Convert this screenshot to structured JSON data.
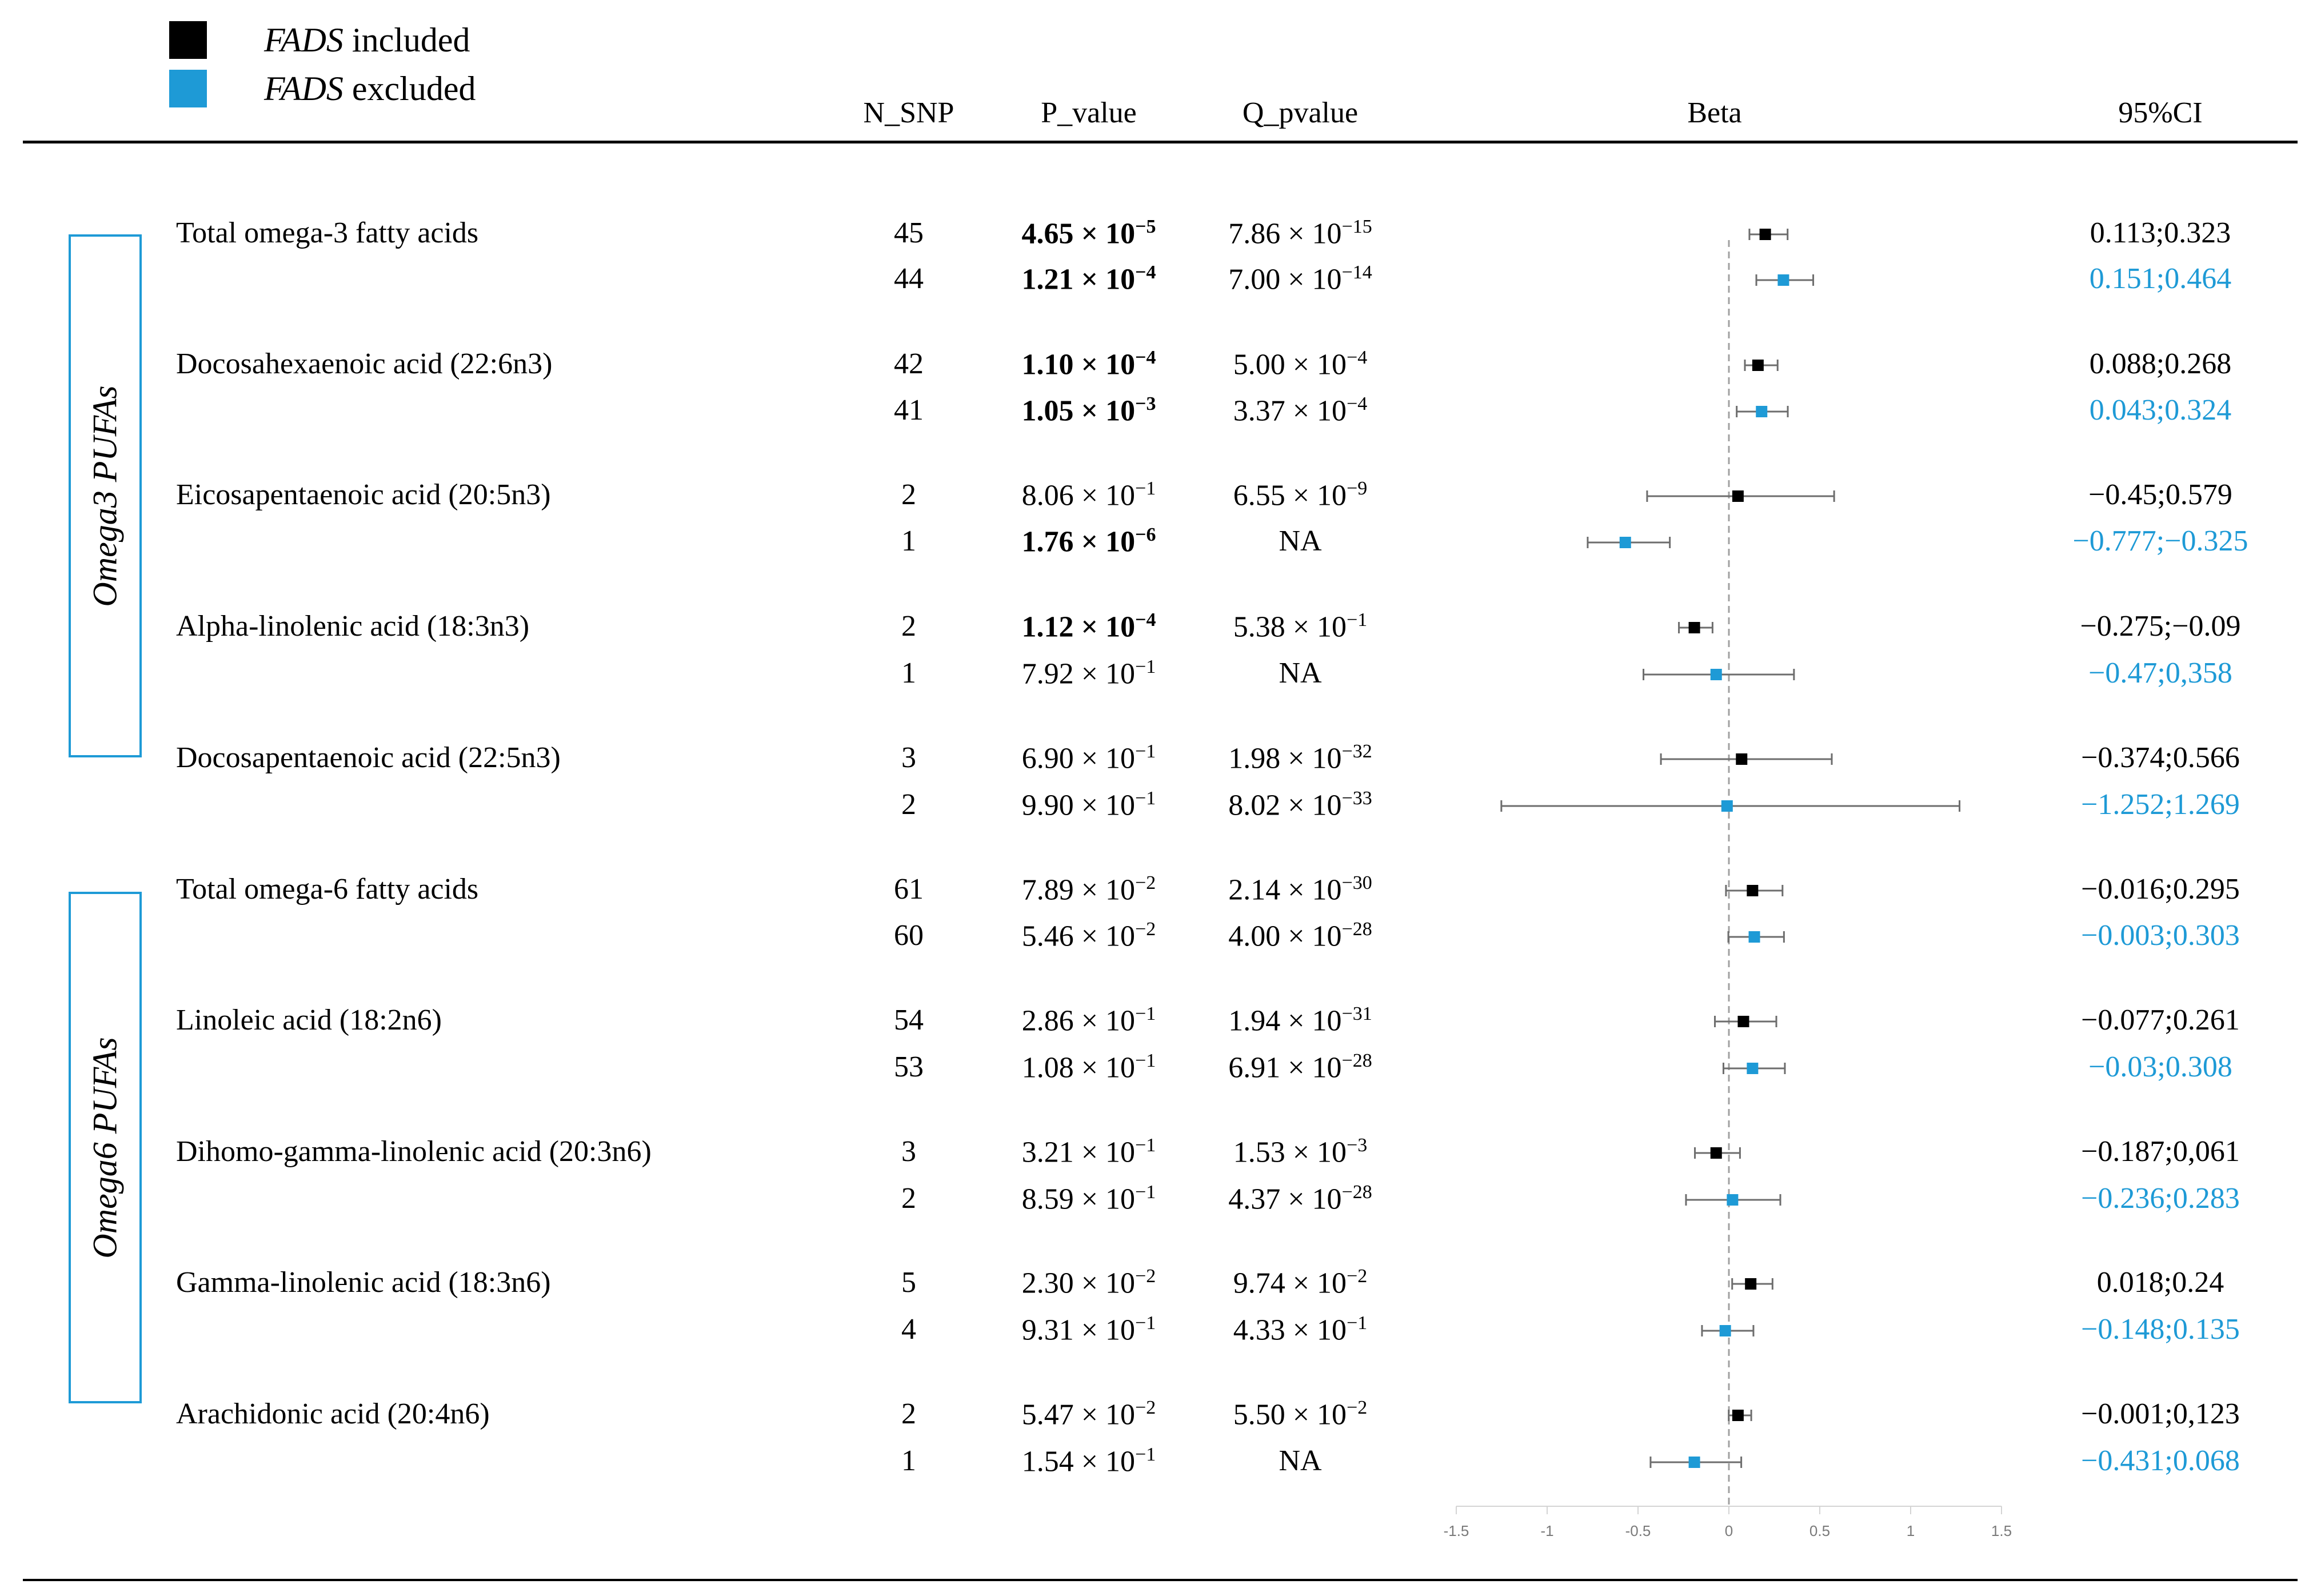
{
  "legend": [
    {
      "italic": "FADS",
      "rest": " included",
      "color": "#000000"
    },
    {
      "italic": "FADS",
      "rest": " excluded",
      "color": "#1E9AD6"
    }
  ],
  "headers": {
    "n_snp": "N_SNP",
    "p_value": "P_value",
    "q_pvalue": "Q_pvalue",
    "beta": "Beta",
    "ci": "95%CI"
  },
  "groups": [
    "Omega3 PUFAs",
    "Omega6 PUFAs"
  ],
  "colors": {
    "included": "#000000",
    "excluded": "#1E9AD6",
    "box": "#1E9AD6",
    "whisker": "#6d6d6d",
    "zero_line": "#a0a0a0"
  },
  "traits": [
    {
      "name": "Total omega-3 fatty acids",
      "rows": [
        {
          "n": "45",
          "p": {
            "m": "4.65",
            "e": "−5",
            "bold": true
          },
          "q": {
            "m": "7.86",
            "e": "−15"
          },
          "ci": "0.113;0.323"
        },
        {
          "n": "44",
          "p": {
            "m": "1.21",
            "e": "−4",
            "bold": true
          },
          "q": {
            "m": "7.00",
            "e": "−14"
          },
          "ci": "0.151;0.464"
        }
      ]
    },
    {
      "name": "Docosahexaenoic acid (22:6n3)",
      "rows": [
        {
          "n": "42",
          "p": {
            "m": "1.10",
            "e": "−4",
            "bold": true
          },
          "q": {
            "m": "5.00",
            "e": "−4"
          },
          "ci": "0.088;0.268"
        },
        {
          "n": "41",
          "p": {
            "m": "1.05",
            "e": "−3",
            "bold": true
          },
          "q": {
            "m": "3.37",
            "e": "−4"
          },
          "ci": "0.043;0.324"
        }
      ]
    },
    {
      "name": "Eicosapentaenoic acid (20:5n3)",
      "rows": [
        {
          "n": "2",
          "p": {
            "m": "8.06",
            "e": "−1",
            "bold": false
          },
          "q": {
            "m": "6.55",
            "e": "−9"
          },
          "ci": "−0.45;0.579"
        },
        {
          "n": "1",
          "p": {
            "m": "1.76",
            "e": "−6",
            "bold": true
          },
          "q": {
            "na": "NA"
          },
          "ci": "−0.777;−0.325"
        }
      ]
    },
    {
      "name": "Alpha-linolenic acid (18:3n3)",
      "rows": [
        {
          "n": "2",
          "p": {
            "m": "1.12",
            "e": "−4",
            "bold": true
          },
          "q": {
            "m": "5.38",
            "e": "−1"
          },
          "ci": "−0.275;−0.09"
        },
        {
          "n": "1",
          "p": {
            "m": "7.92",
            "e": "−1",
            "bold": false
          },
          "q": {
            "na": "NA"
          },
          "ci": "−0.47;0,358"
        }
      ]
    },
    {
      "name": "Docosapentaenoic acid (22:5n3)",
      "rows": [
        {
          "n": "3",
          "p": {
            "m": "6.90",
            "e": "−1",
            "bold": false
          },
          "q": {
            "m": "1.98",
            "e": "−32"
          },
          "ci": "−0.374;0.566"
        },
        {
          "n": "2",
          "p": {
            "m": "9.90",
            "e": "−1",
            "bold": false
          },
          "q": {
            "m": "8.02",
            "e": "−33"
          },
          "ci": "−1.252;1.269"
        }
      ]
    },
    {
      "name": "Total omega-6 fatty acids",
      "rows": [
        {
          "n": "61",
          "p": {
            "m": "7.89",
            "e": "−2",
            "bold": false
          },
          "q": {
            "m": "2.14",
            "e": "−30"
          },
          "ci": "−0.016;0.295"
        },
        {
          "n": "60",
          "p": {
            "m": "5.46",
            "e": "−2",
            "bold": false
          },
          "q": {
            "m": "4.00",
            "e": "−28"
          },
          "ci": "−0.003;0.303"
        }
      ]
    },
    {
      "name": "Linoleic acid (18:2n6)",
      "rows": [
        {
          "n": "54",
          "p": {
            "m": "2.86",
            "e": "−1",
            "bold": false
          },
          "q": {
            "m": "1.94",
            "e": "−31"
          },
          "ci": "−0.077;0.261"
        },
        {
          "n": "53",
          "p": {
            "m": "1.08",
            "e": "−1",
            "bold": false
          },
          "q": {
            "m": "6.91",
            "e": "−28"
          },
          "ci": "−0.03;0.308"
        }
      ]
    },
    {
      "name": "Dihomo-gamma-linolenic acid (20:3n6)",
      "rows": [
        {
          "n": "3",
          "p": {
            "m": "3.21",
            "e": "−1",
            "bold": false
          },
          "q": {
            "m": "1.53",
            "e": "−3"
          },
          "ci": "−0.187;0,061"
        },
        {
          "n": "2",
          "p": {
            "m": "8.59",
            "e": "−1",
            "bold": false
          },
          "q": {
            "m": "4.37",
            "e": "−28"
          },
          "ci": "−0.236;0.283"
        }
      ]
    },
    {
      "name": "Gamma-linolenic acid (18:3n6)",
      "rows": [
        {
          "n": "5",
          "p": {
            "m": "2.30",
            "e": "−2",
            "bold": false
          },
          "q": {
            "m": "9.74",
            "e": "−2"
          },
          "ci": "0.018;0.24"
        },
        {
          "n": "4",
          "p": {
            "m": "9.31",
            "e": "−1",
            "bold": false
          },
          "q": {
            "m": "4.33",
            "e": "−1"
          },
          "ci": "−0.148;0.135"
        }
      ]
    },
    {
      "name": "Arachidonic acid (20:4n6)",
      "rows": [
        {
          "n": "2",
          "p": {
            "m": "5.47",
            "e": "−2",
            "bold": false
          },
          "q": {
            "m": "5.50",
            "e": "−2"
          },
          "ci": "−0.001;0,123"
        },
        {
          "n": "1",
          "p": {
            "m": "1.54",
            "e": "−1",
            "bold": false
          },
          "q": {
            "na": "NA"
          },
          "ci": "−0.431;0.068"
        }
      ]
    }
  ],
  "chart_data": {
    "type": "scatter",
    "title": "",
    "xlabel": "Beta",
    "ylabel": "",
    "xlim": [
      -1.5,
      1.5
    ],
    "x_ticks": [
      "-1.5",
      "-1",
      "-0.5",
      "0",
      "0.5",
      "1",
      "1.5"
    ],
    "reference_line": 0,
    "series": [
      {
        "name": "FADS included",
        "color": "#000000",
        "points": [
          {
            "trait": "Total omega-3 fatty acids",
            "beta": 0.2,
            "lo": 0.113,
            "hi": 0.323
          },
          {
            "trait": "Docosahexaenoic acid (22:6n3)",
            "beta": 0.16,
            "lo": 0.088,
            "hi": 0.268
          },
          {
            "trait": "Eicosapentaenoic acid (20:5n3)",
            "beta": 0.05,
            "lo": -0.45,
            "hi": 0.579
          },
          {
            "trait": "Alpha-linolenic acid (18:3n3)",
            "beta": -0.19,
            "lo": -0.275,
            "hi": -0.09
          },
          {
            "trait": "Docosapentaenoic acid (22:5n3)",
            "beta": 0.07,
            "lo": -0.374,
            "hi": 0.566
          },
          {
            "trait": "Total omega-6 fatty acids",
            "beta": 0.13,
            "lo": -0.016,
            "hi": 0.295
          },
          {
            "trait": "Linoleic acid (18:2n6)",
            "beta": 0.08,
            "lo": -0.077,
            "hi": 0.261
          },
          {
            "trait": "Dihomo-gamma-linolenic acid (20:3n6)",
            "beta": -0.07,
            "lo": -0.187,
            "hi": 0.061
          },
          {
            "trait": "Gamma-linolenic acid (18:3n6)",
            "beta": 0.12,
            "lo": 0.018,
            "hi": 0.24
          },
          {
            "trait": "Arachidonic acid (20:4n6)",
            "beta": 0.05,
            "lo": -0.001,
            "hi": 0.123
          }
        ]
      },
      {
        "name": "FADS excluded",
        "color": "#1E9AD6",
        "points": [
          {
            "trait": "Total omega-3 fatty acids",
            "beta": 0.3,
            "lo": 0.151,
            "hi": 0.464
          },
          {
            "trait": "Docosahexaenoic acid (22:6n3)",
            "beta": 0.18,
            "lo": 0.043,
            "hi": 0.324
          },
          {
            "trait": "Eicosapentaenoic acid (20:5n3)",
            "beta": -0.57,
            "lo": -0.777,
            "hi": -0.325
          },
          {
            "trait": "Alpha-linolenic acid (18:3n3)",
            "beta": -0.07,
            "lo": -0.47,
            "hi": 0.358
          },
          {
            "trait": "Docosapentaenoic acid (22:5n3)",
            "beta": -0.01,
            "lo": -1.252,
            "hi": 1.269
          },
          {
            "trait": "Total omega-6 fatty acids",
            "beta": 0.14,
            "lo": -0.003,
            "hi": 0.303
          },
          {
            "trait": "Linoleic acid (18:2n6)",
            "beta": 0.13,
            "lo": -0.03,
            "hi": 0.308
          },
          {
            "trait": "Dihomo-gamma-linolenic acid (20:3n6)",
            "beta": 0.02,
            "lo": -0.236,
            "hi": 0.283
          },
          {
            "trait": "Gamma-linolenic acid (18:3n6)",
            "beta": -0.02,
            "lo": -0.148,
            "hi": 0.135
          },
          {
            "trait": "Arachidonic acid (20:4n6)",
            "beta": -0.19,
            "lo": -0.431,
            "hi": 0.068
          }
        ]
      }
    ]
  }
}
